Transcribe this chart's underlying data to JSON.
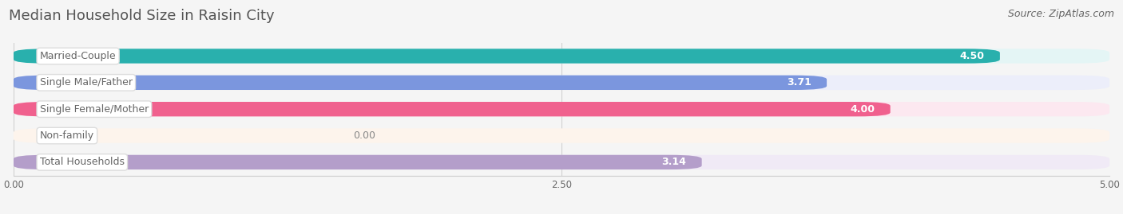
{
  "title": "Median Household Size in Raisin City",
  "source": "Source: ZipAtlas.com",
  "categories": [
    "Married-Couple",
    "Single Male/Father",
    "Single Female/Mother",
    "Non-family",
    "Total Households"
  ],
  "values": [
    4.5,
    3.71,
    4.0,
    0.0,
    3.14
  ],
  "bar_colors": [
    "#29b0ad",
    "#7b96de",
    "#f0618e",
    "#f5c89a",
    "#b49eca"
  ],
  "bar_bg_colors": [
    "#e4f5f5",
    "#eceefa",
    "#fce8f0",
    "#fdf4ec",
    "#f0eaf6"
  ],
  "xlim_data": [
    0,
    5.0
  ],
  "xtick_labels": [
    "0.00",
    "2.50",
    "5.00"
  ],
  "label_color": "#666666",
  "value_color_inside": "#ffffff",
  "value_color_outside": "#888888",
  "title_color": "#555555",
  "title_fontsize": 13,
  "source_fontsize": 9,
  "label_fontsize": 9,
  "value_fontsize": 9,
  "background_color": "#f5f5f5"
}
